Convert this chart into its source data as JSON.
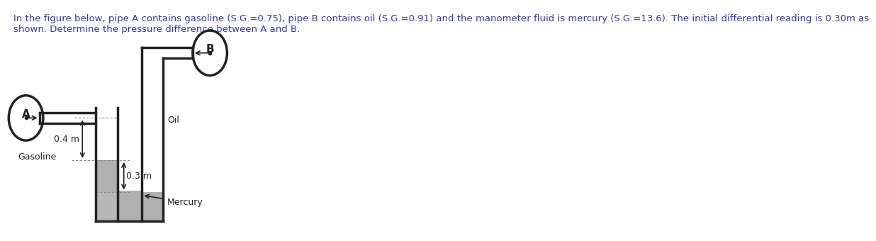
{
  "title_text": "In the figure below, pipe A contains gasoline (S.G.=0.75), pipe B contains oil (S.G.=0.91) and the manometer fluid is mercury (S.G.=13.6). The initial differential reading is 0.30m as\nshown. Determine the pressure difference between A and B.",
  "title_fontsize": 9.5,
  "title_color": "#3333cc",
  "bg_color": "#ffffff",
  "fig_width": 12.0,
  "fig_height": 3.23,
  "label_A": "A",
  "label_B": "B",
  "label_gasoline": "Gasoline",
  "label_oil": "Oil",
  "label_mercury": "Mercury",
  "label_04": "0.4 m",
  "label_03": "0.3 m",
  "pipe_color": "#222222",
  "mercury_color": "#c8c8c8",
  "mercury_fill": "#cccccc"
}
